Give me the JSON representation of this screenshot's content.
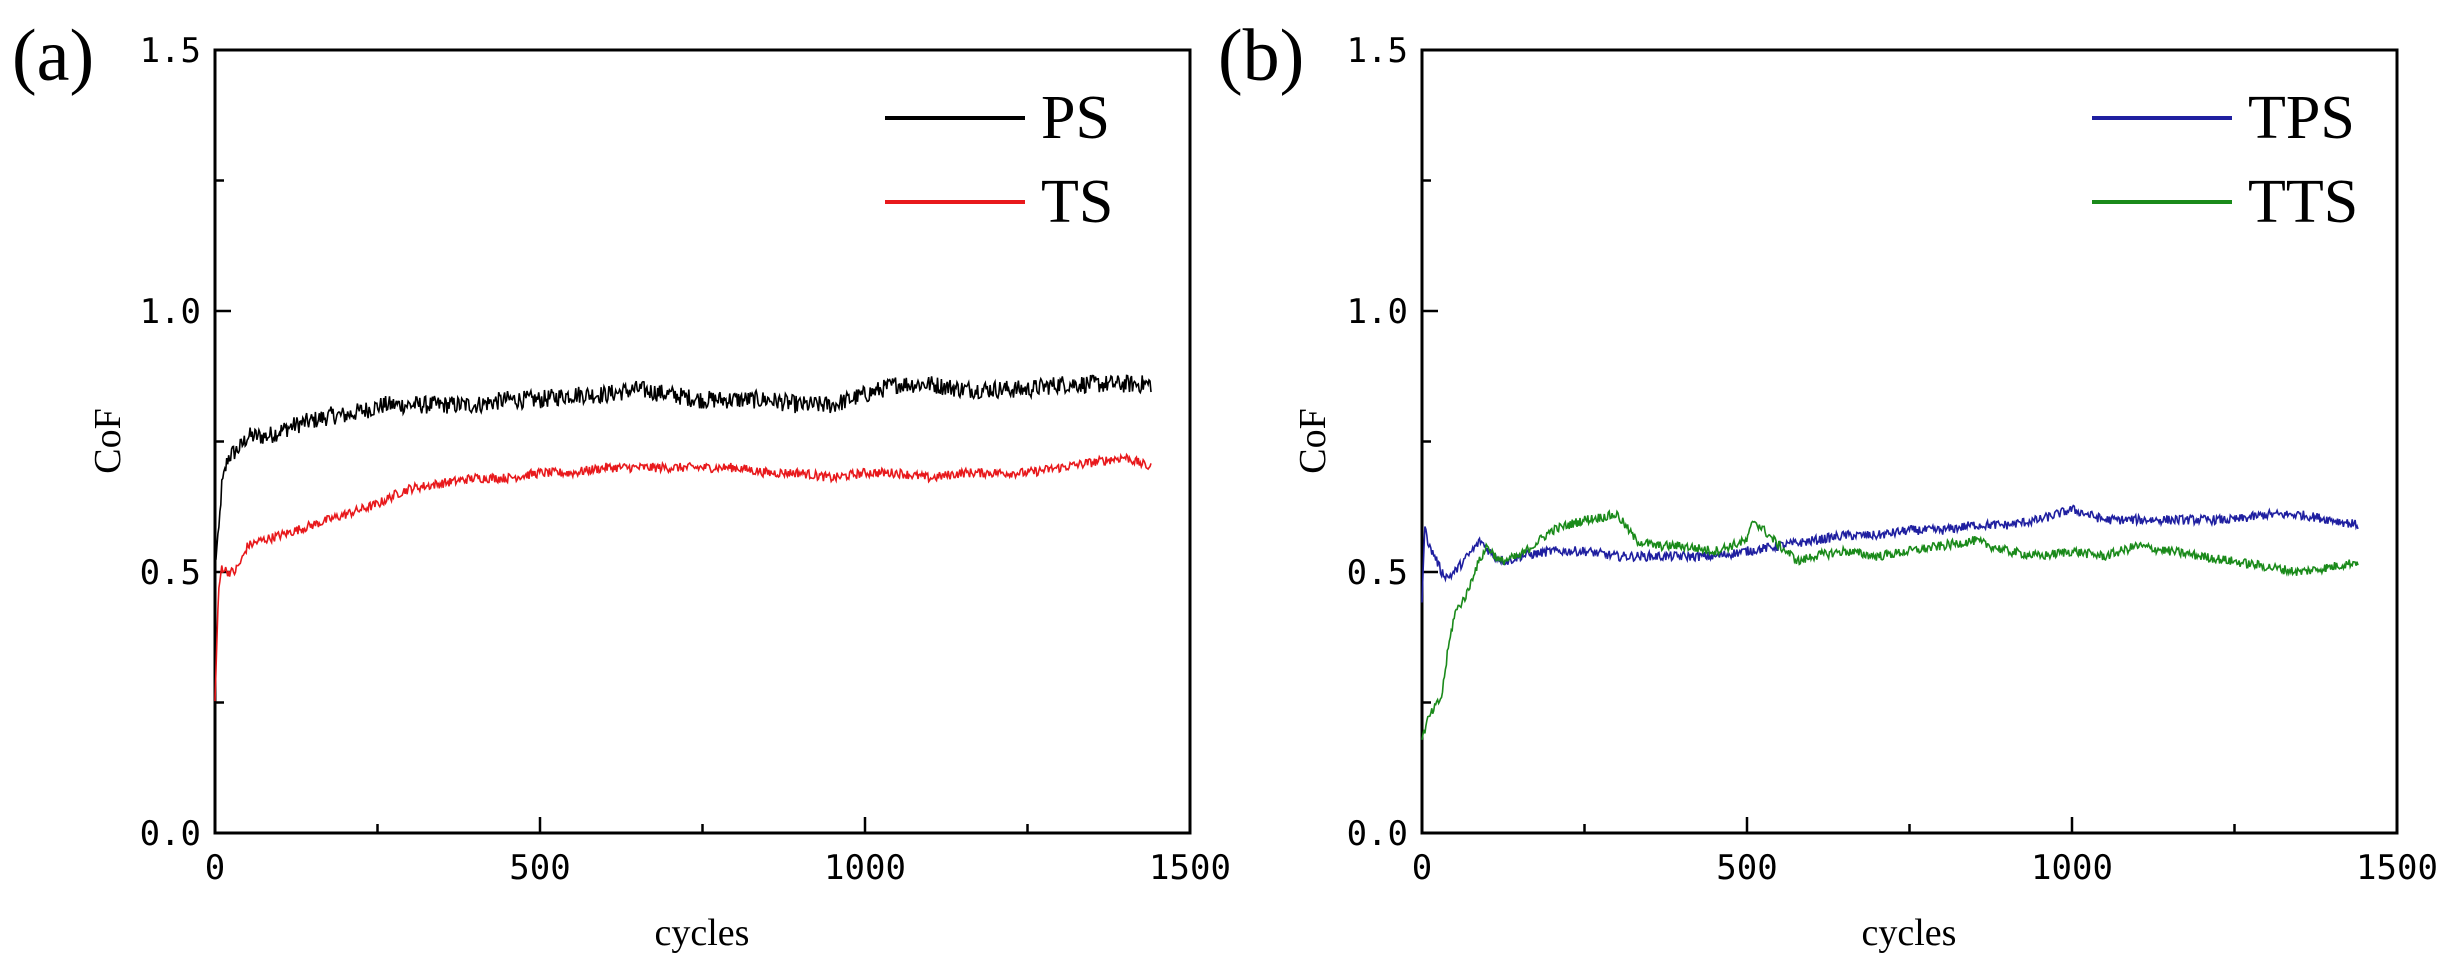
{
  "chart_data": [
    {
      "type": "line",
      "panel_label": "(a)",
      "xlabel": "cycles",
      "ylabel": "CoF",
      "xlim": [
        0,
        1500
      ],
      "ylim": [
        0.0,
        1.5
      ],
      "x_ticks": [
        "0",
        "500",
        "1000",
        "1500"
      ],
      "y_ticks": [
        "0.0",
        "0.5",
        "1.0",
        "1.5"
      ],
      "legend_position": "top-right",
      "series": [
        {
          "name": "PS",
          "color": "#000000",
          "x": [
            0,
            5,
            10,
            20,
            30,
            40,
            50,
            60,
            80,
            100,
            120,
            150,
            180,
            200,
            230,
            260,
            290,
            320,
            350,
            400,
            450,
            500,
            550,
            600,
            650,
            700,
            750,
            800,
            850,
            900,
            950,
            1000,
            1050,
            1100,
            1150,
            1200,
            1250,
            1300,
            1350,
            1400,
            1440
          ],
          "y": [
            0.52,
            0.56,
            0.66,
            0.72,
            0.73,
            0.74,
            0.76,
            0.76,
            0.76,
            0.77,
            0.78,
            0.79,
            0.8,
            0.8,
            0.81,
            0.82,
            0.82,
            0.82,
            0.82,
            0.82,
            0.83,
            0.83,
            0.84,
            0.84,
            0.85,
            0.84,
            0.83,
            0.83,
            0.83,
            0.82,
            0.82,
            0.84,
            0.86,
            0.86,
            0.85,
            0.85,
            0.85,
            0.86,
            0.86,
            0.86,
            0.86
          ]
        },
        {
          "name": "TS",
          "color": "#e8191c",
          "x": [
            0,
            5,
            10,
            20,
            30,
            40,
            50,
            70,
            100,
            150,
            200,
            250,
            280,
            300,
            350,
            400,
            450,
            500,
            550,
            600,
            650,
            700,
            750,
            800,
            850,
            900,
            950,
            1000,
            1050,
            1100,
            1150,
            1200,
            1250,
            1300,
            1350,
            1400,
            1440
          ],
          "y": [
            0.25,
            0.45,
            0.51,
            0.5,
            0.5,
            0.52,
            0.55,
            0.56,
            0.57,
            0.59,
            0.61,
            0.63,
            0.65,
            0.66,
            0.67,
            0.68,
            0.68,
            0.69,
            0.69,
            0.7,
            0.7,
            0.7,
            0.7,
            0.7,
            0.69,
            0.69,
            0.68,
            0.69,
            0.69,
            0.68,
            0.69,
            0.69,
            0.69,
            0.7,
            0.71,
            0.72,
            0.7
          ]
        }
      ]
    },
    {
      "type": "line",
      "panel_label": "(b)",
      "xlabel": "cycles",
      "ylabel": "CoF",
      "xlim": [
        0,
        1500
      ],
      "ylim": [
        0.0,
        1.5
      ],
      "x_ticks": [
        "0",
        "500",
        "1000",
        "1500"
      ],
      "y_ticks": [
        "0.0",
        "0.5",
        "1.0",
        "1.5"
      ],
      "legend_position": "top-right",
      "series": [
        {
          "name": "TPS",
          "color": "#1f1fa0",
          "x": [
            0,
            5,
            10,
            20,
            30,
            40,
            50,
            70,
            90,
            110,
            130,
            150,
            200,
            250,
            300,
            350,
            400,
            450,
            500,
            550,
            600,
            650,
            700,
            750,
            800,
            850,
            900,
            950,
            1000,
            1050,
            1100,
            1150,
            1200,
            1250,
            1300,
            1350,
            1400,
            1440
          ],
          "y": [
            0.45,
            0.6,
            0.55,
            0.53,
            0.5,
            0.49,
            0.5,
            0.53,
            0.56,
            0.53,
            0.52,
            0.53,
            0.54,
            0.54,
            0.53,
            0.53,
            0.53,
            0.53,
            0.54,
            0.55,
            0.56,
            0.57,
            0.57,
            0.58,
            0.58,
            0.59,
            0.59,
            0.6,
            0.62,
            0.6,
            0.6,
            0.6,
            0.6,
            0.6,
            0.61,
            0.61,
            0.6,
            0.59
          ]
        },
        {
          "name": "TTS",
          "color": "#1a8a1a",
          "x": [
            0,
            5,
            10,
            20,
            30,
            40,
            50,
            60,
            70,
            80,
            100,
            120,
            150,
            180,
            200,
            250,
            300,
            330,
            360,
            400,
            450,
            500,
            510,
            550,
            580,
            600,
            650,
            700,
            750,
            800,
            850,
            900,
            950,
            1000,
            1050,
            1100,
            1150,
            1200,
            1250,
            1300,
            1350,
            1400,
            1440
          ],
          "y": [
            0.18,
            0.2,
            0.22,
            0.24,
            0.26,
            0.35,
            0.42,
            0.44,
            0.46,
            0.5,
            0.55,
            0.52,
            0.53,
            0.56,
            0.58,
            0.6,
            0.61,
            0.56,
            0.55,
            0.55,
            0.54,
            0.56,
            0.6,
            0.55,
            0.52,
            0.53,
            0.54,
            0.53,
            0.54,
            0.55,
            0.56,
            0.54,
            0.53,
            0.54,
            0.53,
            0.55,
            0.54,
            0.53,
            0.52,
            0.51,
            0.5,
            0.51,
            0.52
          ]
        }
      ]
    }
  ]
}
